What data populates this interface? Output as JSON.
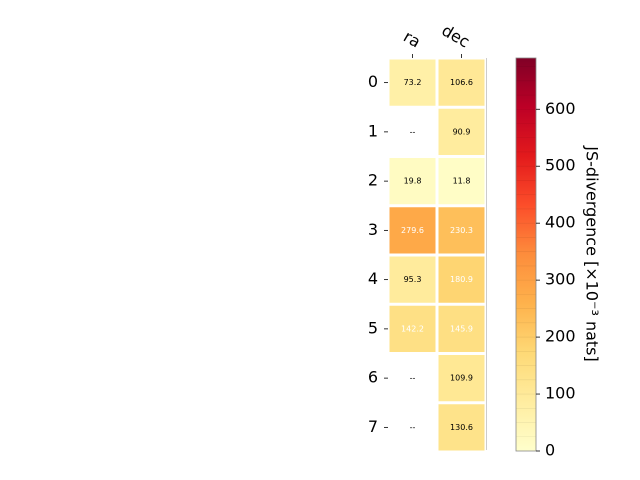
{
  "chart_data": {
    "type": "heatmap",
    "x_categories": [
      "ra",
      "dec"
    ],
    "y_categories": [
      "0",
      "1",
      "2",
      "3",
      "4",
      "5",
      "6",
      "7"
    ],
    "values": [
      [
        73.2,
        106.6
      ],
      [
        null,
        90.9
      ],
      [
        19.8,
        11.8
      ],
      [
        279.6,
        230.3
      ],
      [
        95.3,
        180.9
      ],
      [
        142.2,
        145.9
      ],
      [
        null,
        109.9
      ],
      [
        null,
        130.6
      ]
    ],
    "cell_labels": [
      [
        "73.2",
        "106.6"
      ],
      [
        "--",
        "90.9"
      ],
      [
        "19.8",
        "11.8"
      ],
      [
        "279.6",
        "230.3"
      ],
      [
        "95.3",
        "180.9"
      ],
      [
        "142.2",
        "145.9"
      ],
      [
        "--",
        "109.9"
      ],
      [
        "--",
        "130.6"
      ]
    ],
    "colorbar": {
      "label": "JS-divergence [×10⁻³ nats]",
      "range": [
        0,
        690
      ],
      "ticks": [
        "0",
        "100",
        "200",
        "300",
        "400",
        "500",
        "600"
      ],
      "tick_values": [
        0,
        100,
        200,
        300,
        400,
        500,
        600
      ],
      "colormap": "YlOrRd"
    }
  }
}
